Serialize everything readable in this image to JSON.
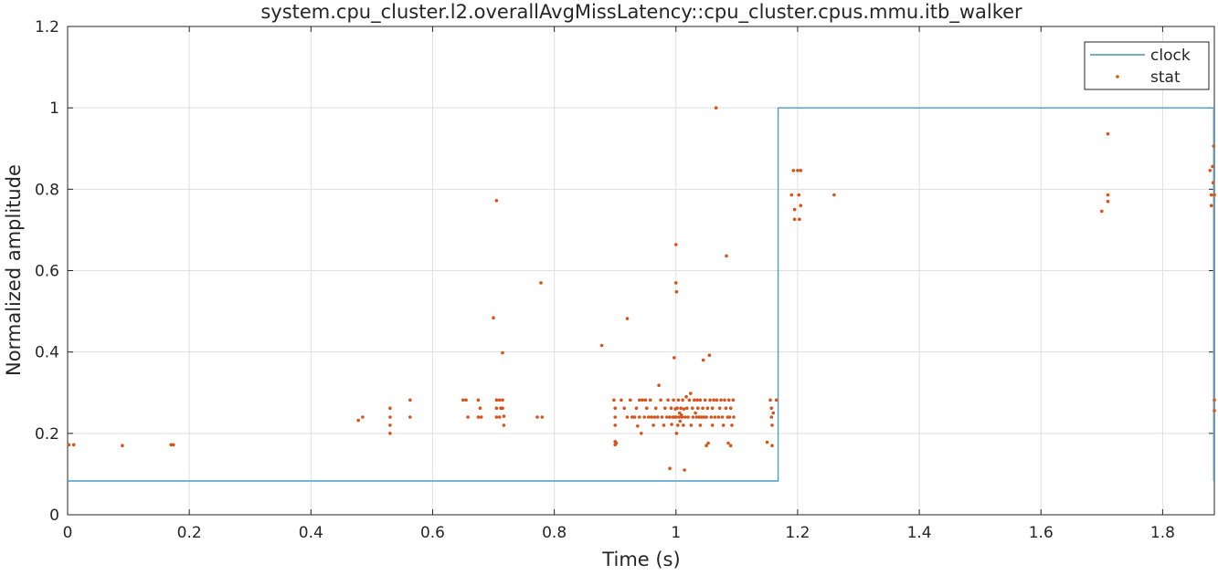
{
  "chart_data": {
    "type": "scatter",
    "title": "system.cpu_cluster.l2.overallAvgMissLatency::cpu_cluster.cpus.mmu.itb_walker",
    "xlabel": "Time (s)",
    "ylabel": "Normalized amplitude",
    "xlim": [
      0,
      1.885
    ],
    "ylim": [
      0,
      1.2
    ],
    "xticks": [
      0,
      0.2,
      0.4,
      0.6,
      0.8,
      1,
      1.2,
      1.4,
      1.6,
      1.8
    ],
    "xtick_labels": [
      "0",
      "0.2",
      "0.4",
      "0.6",
      "0.8",
      "1",
      "1.2",
      "1.4",
      "1.6",
      "1.8"
    ],
    "yticks": [
      0,
      0.2,
      0.4,
      0.6,
      0.8,
      1,
      1.2
    ],
    "ytick_labels": [
      "0",
      "0.2",
      "0.4",
      "0.6",
      "0.8",
      "1",
      "1.2"
    ],
    "grid": true,
    "legend_position": "top-right",
    "series": [
      {
        "name": "clock",
        "kind": "line",
        "color": "#4a9ecb",
        "legend_color": "#1a8a8a",
        "x": [
          0,
          1.168,
          1.168,
          1.884,
          1.884
        ],
        "y": [
          0.083,
          0.083,
          1.0,
          1.0,
          0.083
        ]
      },
      {
        "name": "stat",
        "kind": "points",
        "color": "#d95319",
        "points": [
          [
            0.002,
            0.172
          ],
          [
            0.01,
            0.172
          ],
          [
            0.09,
            0.17
          ],
          [
            0.17,
            0.172
          ],
          [
            0.174,
            0.172
          ],
          [
            0.478,
            0.232
          ],
          [
            0.485,
            0.24
          ],
          [
            0.53,
            0.262
          ],
          [
            0.53,
            0.24
          ],
          [
            0.53,
            0.22
          ],
          [
            0.53,
            0.2
          ],
          [
            0.563,
            0.282
          ],
          [
            0.563,
            0.24
          ],
          [
            0.65,
            0.282
          ],
          [
            0.655,
            0.282
          ],
          [
            0.658,
            0.24
          ],
          [
            0.675,
            0.282
          ],
          [
            0.675,
            0.24
          ],
          [
            0.678,
            0.262
          ],
          [
            0.68,
            0.24
          ],
          [
            0.7,
            0.484
          ],
          [
            0.705,
            0.772
          ],
          [
            0.705,
            0.282
          ],
          [
            0.705,
            0.262
          ],
          [
            0.705,
            0.24
          ],
          [
            0.71,
            0.282
          ],
          [
            0.71,
            0.24
          ],
          [
            0.712,
            0.262
          ],
          [
            0.715,
            0.282
          ],
          [
            0.715,
            0.398
          ],
          [
            0.715,
            0.262
          ],
          [
            0.717,
            0.242
          ],
          [
            0.717,
            0.22
          ],
          [
            0.772,
            0.24
          ],
          [
            0.778,
            0.57
          ],
          [
            0.78,
            0.24
          ],
          [
            0.878,
            0.416
          ],
          [
            0.898,
            0.282
          ],
          [
            0.9,
            0.262
          ],
          [
            0.9,
            0.24
          ],
          [
            0.9,
            0.22
          ],
          [
            0.9,
            0.18
          ],
          [
            0.9,
            0.172
          ],
          [
            0.902,
            0.176
          ],
          [
            0.91,
            0.282
          ],
          [
            0.915,
            0.262
          ],
          [
            0.92,
            0.482
          ],
          [
            0.92,
            0.24
          ],
          [
            0.925,
            0.282
          ],
          [
            0.928,
            0.24
          ],
          [
            0.932,
            0.24
          ],
          [
            0.935,
            0.262
          ],
          [
            0.937,
            0.218
          ],
          [
            0.94,
            0.282
          ],
          [
            0.94,
            0.24
          ],
          [
            0.943,
            0.2
          ],
          [
            0.945,
            0.282
          ],
          [
            0.948,
            0.24
          ],
          [
            0.95,
            0.282
          ],
          [
            0.952,
            0.262
          ],
          [
            0.955,
            0.24
          ],
          [
            0.958,
            0.282
          ],
          [
            0.96,
            0.24
          ],
          [
            0.963,
            0.22
          ],
          [
            0.965,
            0.24
          ],
          [
            0.967,
            0.262
          ],
          [
            0.97,
            0.24
          ],
          [
            0.972,
            0.318
          ],
          [
            0.975,
            0.282
          ],
          [
            0.977,
            0.24
          ],
          [
            0.98,
            0.22
          ],
          [
            0.982,
            0.262
          ],
          [
            0.985,
            0.24
          ],
          [
            0.987,
            0.282
          ],
          [
            0.99,
            0.24
          ],
          [
            0.99,
            0.114
          ],
          [
            0.992,
            0.262
          ],
          [
            0.993,
            0.222
          ],
          [
            0.995,
            0.24
          ],
          [
            0.996,
            0.282
          ],
          [
            0.997,
            0.386
          ],
          [
            0.998,
            0.24
          ],
          [
            0.999,
            0.26
          ],
          [
            1.0,
            0.664
          ],
          [
            1.0,
            0.57
          ],
          [
            1.001,
            0.548
          ],
          [
            1.0,
            0.24
          ],
          [
            1.001,
            0.2
          ],
          [
            1.002,
            0.262
          ],
          [
            1.003,
            0.22
          ],
          [
            1.004,
            0.282
          ],
          [
            1.005,
            0.24
          ],
          [
            1.006,
            0.25
          ],
          [
            1.007,
            0.23
          ],
          [
            1.008,
            0.262
          ],
          [
            1.009,
            0.245
          ],
          [
            1.01,
            0.24
          ],
          [
            1.011,
            0.282
          ],
          [
            1.012,
            0.22
          ],
          [
            1.013,
            0.26
          ],
          [
            1.014,
            0.11
          ],
          [
            1.015,
            0.24
          ],
          [
            1.017,
            0.29
          ],
          [
            1.018,
            0.262
          ],
          [
            1.02,
            0.24
          ],
          [
            1.022,
            0.282
          ],
          [
            1.024,
            0.298
          ],
          [
            1.025,
            0.22
          ],
          [
            1.027,
            0.262
          ],
          [
            1.028,
            0.24
          ],
          [
            1.03,
            0.282
          ],
          [
            1.032,
            0.25
          ],
          [
            1.034,
            0.24
          ],
          [
            1.035,
            0.282
          ],
          [
            1.036,
            0.262
          ],
          [
            1.038,
            0.24
          ],
          [
            1.04,
            0.282
          ],
          [
            1.04,
            0.22
          ],
          [
            1.042,
            0.24
          ],
          [
            1.044,
            0.262
          ],
          [
            1.045,
            0.38
          ],
          [
            1.046,
            0.24
          ],
          [
            1.048,
            0.282
          ],
          [
            1.05,
            0.24
          ],
          [
            1.05,
            0.17
          ],
          [
            1.052,
            0.262
          ],
          [
            1.053,
            0.176
          ],
          [
            1.055,
            0.392
          ],
          [
            1.056,
            0.282
          ],
          [
            1.058,
            0.24
          ],
          [
            1.06,
            0.22
          ],
          [
            1.06,
            0.262
          ],
          [
            1.062,
            0.282
          ],
          [
            1.064,
            0.24
          ],
          [
            1.066,
            1.0
          ],
          [
            1.067,
            0.282
          ],
          [
            1.07,
            0.24
          ],
          [
            1.072,
            0.262
          ],
          [
            1.074,
            0.282
          ],
          [
            1.076,
            0.24
          ],
          [
            1.078,
            0.22
          ],
          [
            1.08,
            0.282
          ],
          [
            1.082,
            0.262
          ],
          [
            1.083,
            0.636
          ],
          [
            1.085,
            0.24
          ],
          [
            1.086,
            0.176
          ],
          [
            1.087,
            0.282
          ],
          [
            1.088,
            0.24
          ],
          [
            1.09,
            0.262
          ],
          [
            1.09,
            0.17
          ],
          [
            1.092,
            0.22
          ],
          [
            1.094,
            0.282
          ],
          [
            1.095,
            0.24
          ],
          [
            1.15,
            0.178
          ],
          [
            1.155,
            0.282
          ],
          [
            1.157,
            0.24
          ],
          [
            1.157,
            0.262
          ],
          [
            1.158,
            0.22
          ],
          [
            1.158,
            0.17
          ],
          [
            1.16,
            0.25
          ],
          [
            1.165,
            0.282
          ],
          [
            1.19,
            0.786
          ],
          [
            1.193,
            0.846
          ],
          [
            1.195,
            0.726
          ],
          [
            1.195,
            0.75
          ],
          [
            1.2,
            0.846
          ],
          [
            1.202,
            0.786
          ],
          [
            1.203,
            0.726
          ],
          [
            1.205,
            0.846
          ],
          [
            1.205,
            0.76
          ],
          [
            1.26,
            0.786
          ],
          [
            1.7,
            0.746
          ],
          [
            1.71,
            0.936
          ],
          [
            1.71,
            0.786
          ],
          [
            1.71,
            0.77
          ],
          [
            1.878,
            0.846
          ],
          [
            1.88,
            0.786
          ],
          [
            1.88,
            0.76
          ],
          [
            1.882,
            0.856
          ],
          [
            1.883,
            0.816
          ],
          [
            1.884,
            0.906
          ],
          [
            1.885,
            0.786
          ],
          [
            1.885,
            0.282
          ],
          [
            1.885,
            0.256
          ]
        ]
      }
    ]
  }
}
